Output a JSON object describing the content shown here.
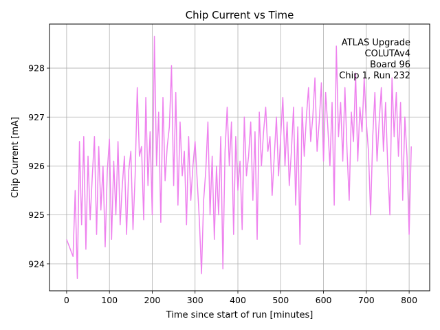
{
  "chart_data": {
    "type": "line",
    "title": "Chip Current vs Time",
    "xlabel": "Time since start of run [minutes]",
    "ylabel": "Chip Current [mA]",
    "xlim": [
      -40,
      848
    ],
    "ylim": [
      923.45,
      928.9
    ],
    "xticks": [
      0,
      100,
      200,
      300,
      400,
      500,
      600,
      700,
      800
    ],
    "yticks": [
      924,
      925,
      926,
      927,
      928
    ],
    "grid": true,
    "line_color": "#ee82ee",
    "annotation": [
      "ATLAS Upgrade",
      "COLUTAv4",
      "Board 96",
      "Chip 1, Run 232"
    ],
    "series": [
      {
        "name": "Chip 1",
        "x": [
          0,
          15,
          20,
          25,
          30,
          35,
          40,
          45,
          50,
          55,
          60,
          65,
          70,
          75,
          80,
          85,
          90,
          95,
          100,
          105,
          110,
          115,
          120,
          125,
          130,
          135,
          140,
          145,
          150,
          155,
          160,
          165,
          170,
          175,
          180,
          185,
          190,
          195,
          200,
          205,
          210,
          215,
          220,
          225,
          230,
          235,
          240,
          245,
          250,
          255,
          260,
          265,
          270,
          275,
          280,
          285,
          290,
          295,
          300,
          305,
          310,
          315,
          320,
          325,
          330,
          335,
          340,
          345,
          350,
          355,
          360,
          365,
          370,
          375,
          380,
          385,
          390,
          395,
          400,
          405,
          410,
          415,
          420,
          425,
          430,
          435,
          440,
          445,
          450,
          455,
          460,
          465,
          470,
          475,
          480,
          485,
          490,
          495,
          500,
          505,
          510,
          515,
          520,
          525,
          530,
          535,
          540,
          545,
          550,
          555,
          560,
          565,
          570,
          575,
          580,
          585,
          590,
          595,
          600,
          605,
          610,
          615,
          620,
          625,
          630,
          635,
          640,
          645,
          650,
          655,
          660,
          665,
          670,
          675,
          680,
          685,
          690,
          695,
          700,
          705,
          710,
          715,
          720,
          725,
          730,
          735,
          740,
          745,
          750,
          755,
          760,
          765,
          770,
          775,
          780,
          785,
          790,
          795,
          800,
          805
        ],
        "values": [
          924.5,
          924.15,
          925.5,
          923.7,
          926.5,
          924.8,
          926.6,
          924.3,
          926.2,
          924.9,
          925.8,
          926.6,
          924.6,
          926.4,
          925.1,
          926.0,
          924.35,
          925.9,
          926.55,
          924.5,
          926.1,
          925.0,
          926.5,
          924.8,
          925.6,
          926.2,
          924.6,
          925.9,
          926.3,
          924.7,
          925.8,
          927.6,
          926.2,
          926.4,
          924.9,
          927.4,
          925.6,
          926.7,
          925.0,
          928.65,
          926.0,
          927.1,
          924.85,
          927.4,
          925.7,
          926.4,
          926.8,
          928.05,
          925.6,
          927.5,
          925.2,
          926.9,
          925.8,
          926.3,
          924.8,
          926.6,
          925.3,
          926.0,
          926.5,
          925.7,
          924.9,
          923.8,
          925.3,
          925.9,
          926.9,
          925.0,
          926.2,
          924.5,
          926.0,
          925.0,
          926.6,
          923.9,
          926.3,
          927.2,
          926.0,
          926.9,
          924.6,
          926.6,
          925.5,
          926.1,
          924.7,
          927.0,
          925.8,
          926.2,
          926.9,
          925.3,
          926.7,
          924.5,
          927.1,
          926.0,
          926.7,
          927.2,
          926.3,
          926.6,
          925.4,
          926.2,
          927.0,
          925.8,
          926.6,
          927.4,
          926.0,
          926.9,
          925.6,
          926.3,
          927.2,
          925.2,
          926.8,
          924.4,
          927.2,
          926.2,
          927.0,
          927.6,
          926.5,
          927.0,
          927.8,
          926.3,
          926.9,
          927.7,
          926.1,
          927.5,
          926.8,
          926.0,
          927.3,
          925.2,
          928.45,
          926.6,
          927.3,
          926.1,
          927.6,
          926.3,
          925.3,
          927.1,
          926.5,
          927.9,
          926.1,
          927.2,
          926.7,
          927.8,
          926.9,
          926.3,
          925.0,
          926.6,
          927.5,
          926.1,
          926.9,
          927.6,
          926.3,
          927.3,
          926.0,
          925.0,
          927.8,
          926.6,
          927.5,
          926.2,
          927.3,
          925.3,
          927.0,
          926.2,
          924.6,
          926.4
        ]
      }
    ]
  }
}
